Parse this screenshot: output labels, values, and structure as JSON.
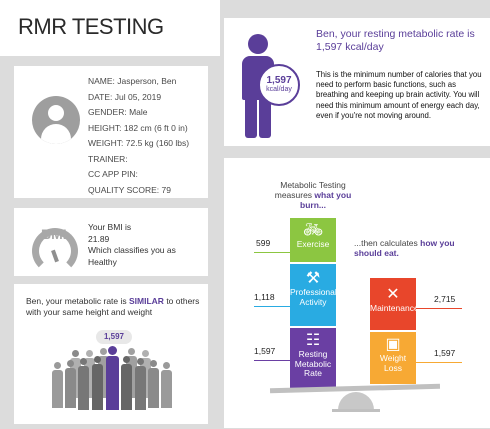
{
  "header": {
    "title": "RMR TESTING"
  },
  "profile": {
    "fields": [
      "NAME: Jasperson, Ben",
      "DATE: Jul 05, 2019",
      "GENDER: Male",
      "HEIGHT: 182 cm (6 ft 0 in)",
      "WEIGHT: 72.5 kg (160 lbs)",
      "TRAINER:",
      "CC APP PIN:",
      "QUALITY SCORE: 79"
    ]
  },
  "bmi": {
    "gauge_label": "BMI",
    "line1": "Your BMI is",
    "value": "21.89",
    "line3": "Which classifies you as",
    "classification": "Healthy"
  },
  "similar": {
    "text_pre": "Ben, your metabolic rate is ",
    "text_strong": "SIMILAR",
    "text_post": " to others with your same height and weight",
    "value": "1,597"
  },
  "rmr": {
    "value": "1,597",
    "unit": "kcal/day",
    "title": "Ben, your resting metabolic rate is 1,597 kcal/day",
    "description": "This is the minimum number of calories that you need to perform basic functions, such as breathing and keeping up brain activity. You will need this minimum amount of energy each day, even if you're not moving around."
  },
  "metabolic": {
    "title_pre": "Metabolic Testing measures ",
    "title_strong": "what you burn...",
    "calc_pre": "...then calculates ",
    "calc_strong": "how you should eat.",
    "left_blocks": [
      {
        "label": "Exercise",
        "value": "599",
        "icon": "bicycle-icon",
        "color": "#8cc641"
      },
      {
        "label": "Professional Activity",
        "value": "1,118",
        "icon": "hammer-icon",
        "color": "#29abe2"
      },
      {
        "label": "Resting Metabolic Rate",
        "value": "1,597",
        "icon": "bed-icon",
        "color": "#6a3fa3"
      }
    ],
    "right_blocks": [
      {
        "label": "Maintenance",
        "value": "2,715",
        "icon": "fork-knife-icon",
        "color": "#e8462b"
      },
      {
        "label": "Weight Loss",
        "value": "1,597",
        "icon": "scale-icon",
        "color": "#f7a934"
      }
    ]
  }
}
